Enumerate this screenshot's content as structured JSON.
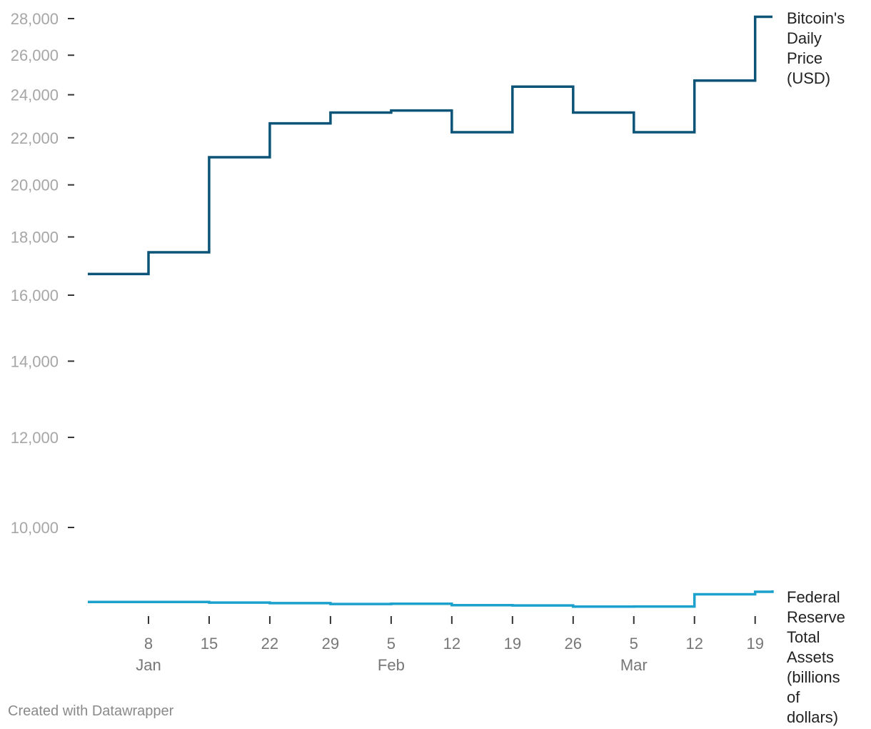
{
  "chart_data": {
    "type": "line",
    "line_style": "step",
    "title": "",
    "xlabel": "",
    "ylabel": "",
    "y_scale": "log",
    "ylim": [
      8500,
      28500
    ],
    "grid": false,
    "y_ticks": [
      10000,
      12000,
      14000,
      16000,
      18000,
      20000,
      22000,
      24000,
      26000,
      28000
    ],
    "y_tick_labels": [
      "10,000",
      "12,000",
      "14,000",
      "16,000",
      "18,000",
      "20,000",
      "22,000",
      "24,000",
      "26,000",
      "28,000"
    ],
    "x_range_days": [
      1,
      80
    ],
    "x_ticks": [
      {
        "day": 8,
        "label": "8",
        "month": "Jan"
      },
      {
        "day": 15,
        "label": "15",
        "month": ""
      },
      {
        "day": 22,
        "label": "22",
        "month": ""
      },
      {
        "day": 29,
        "label": "29",
        "month": ""
      },
      {
        "day": 36,
        "label": "5",
        "month": "Feb"
      },
      {
        "day": 43,
        "label": "12",
        "month": ""
      },
      {
        "day": 50,
        "label": "19",
        "month": ""
      },
      {
        "day": 57,
        "label": "26",
        "month": ""
      },
      {
        "day": 64,
        "label": "5",
        "month": "Mar"
      },
      {
        "day": 71,
        "label": "12",
        "month": ""
      },
      {
        "day": 78,
        "label": "19",
        "month": ""
      }
    ],
    "series": [
      {
        "name": "Bitcoin's Daily Price (USD)",
        "label_lines": [
          "Bitcoin's",
          "Daily",
          "Price",
          "(USD)"
        ],
        "color": "#0b5377",
        "points": [
          {
            "day": 1,
            "value": 16700
          },
          {
            "day": 8,
            "value": 17450
          },
          {
            "day": 15,
            "value": 21150
          },
          {
            "day": 22,
            "value": 22650
          },
          {
            "day": 29,
            "value": 23150
          },
          {
            "day": 36,
            "value": 23250
          },
          {
            "day": 43,
            "value": 22250
          },
          {
            "day": 50,
            "value": 24400
          },
          {
            "day": 57,
            "value": 23150
          },
          {
            "day": 64,
            "value": 22250
          },
          {
            "day": 71,
            "value": 24700
          },
          {
            "day": 78,
            "value": 28100
          }
        ]
      },
      {
        "name": "Federal Reserve Total Assets (billions of dollars)",
        "label_lines": [
          "Federal",
          "Reserve",
          "Total",
          "Assets",
          "(billions",
          "of",
          "dollars)"
        ],
        "color": "#1ba1cc",
        "points": [
          {
            "day": 1,
            "value": 8600
          },
          {
            "day": 15,
            "value": 8590
          },
          {
            "day": 22,
            "value": 8580
          },
          {
            "day": 29,
            "value": 8565
          },
          {
            "day": 36,
            "value": 8570
          },
          {
            "day": 43,
            "value": 8545
          },
          {
            "day": 50,
            "value": 8540
          },
          {
            "day": 57,
            "value": 8520
          },
          {
            "day": 64,
            "value": 8522
          },
          {
            "day": 71,
            "value": 8735
          },
          {
            "day": 78,
            "value": 8780
          }
        ]
      }
    ]
  },
  "footer": {
    "credit": "Created with Datawrapper"
  }
}
